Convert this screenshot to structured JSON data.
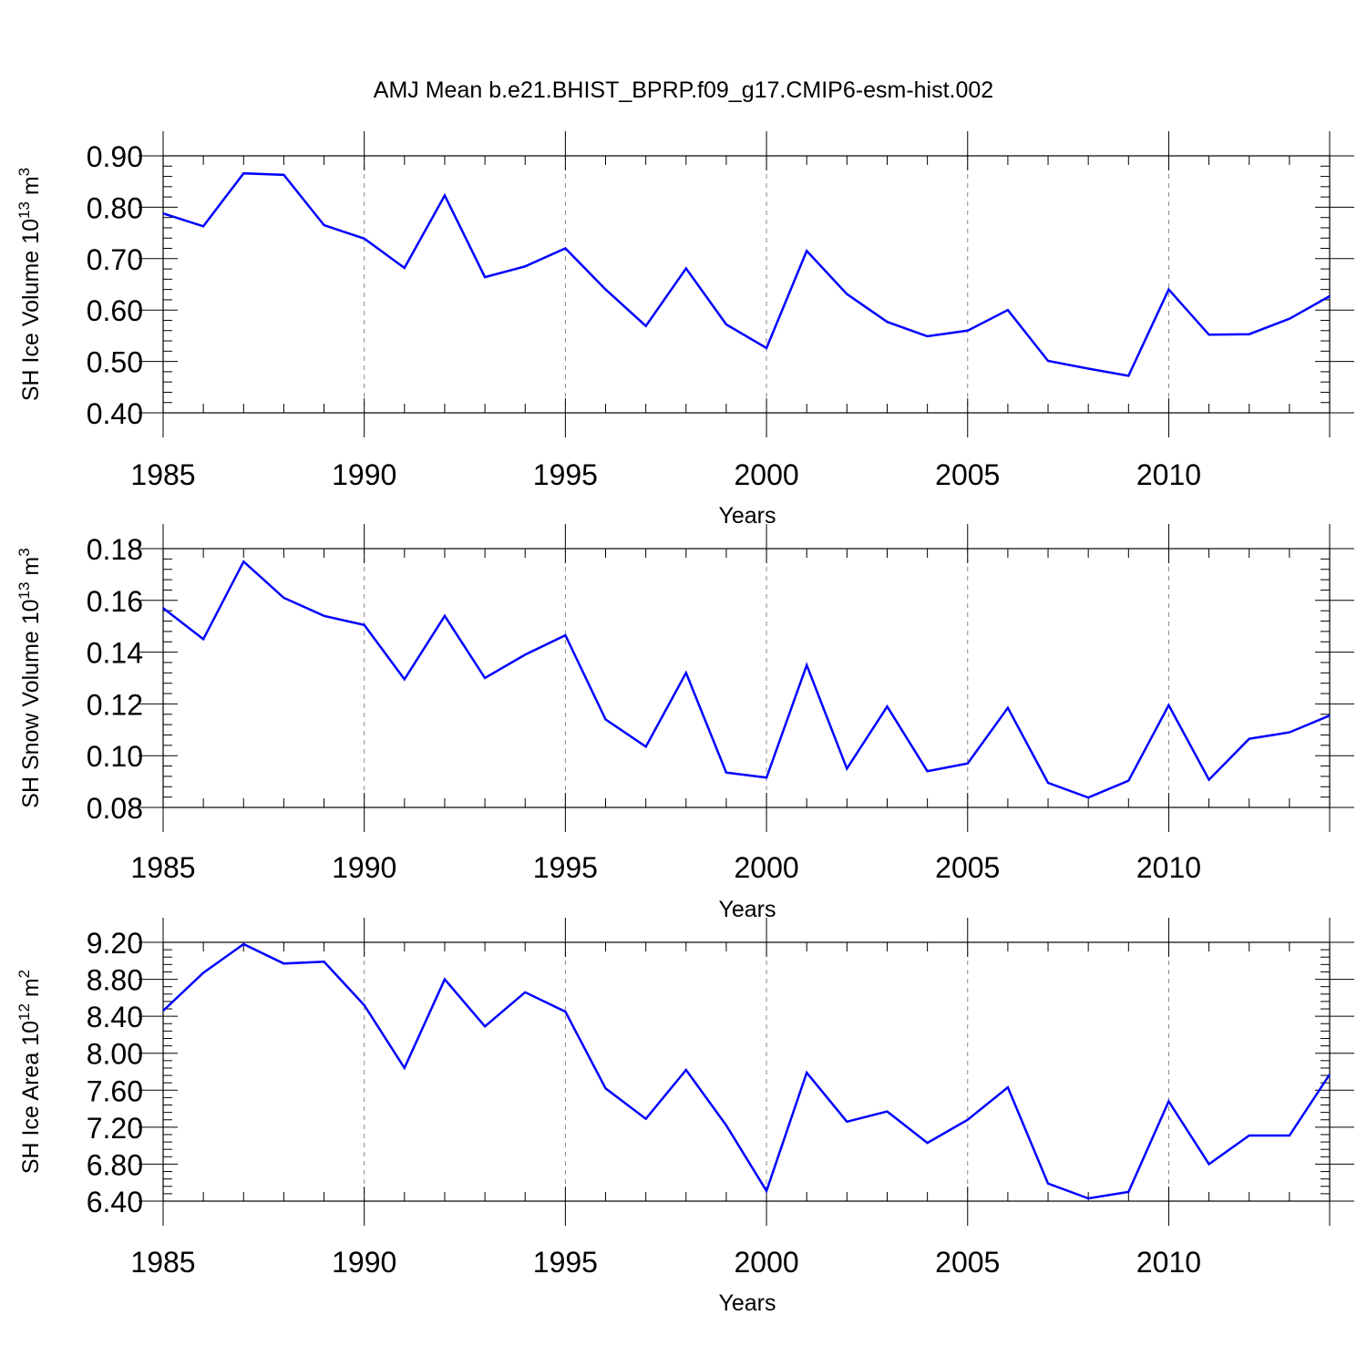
{
  "chart_title": "AMJ Mean b.e21.BHIST_BPRP.f09_g17.CMIP6-esm-hist.002",
  "chart_data": [
    {
      "type": "line",
      "title": "AMJ Mean b.e21.BHIST_BPRP.f09_g17.CMIP6-esm-hist.002",
      "xlabel": "Years",
      "ylabel": {
        "base": "SH Ice Volume 10",
        "exp": "13",
        "unit": " m",
        "unit_exp": "3"
      },
      "x": [
        1985,
        1986,
        1987,
        1988,
        1989,
        1990,
        1991,
        1992,
        1993,
        1994,
        1995,
        1996,
        1997,
        1998,
        1999,
        2000,
        2001,
        2002,
        2003,
        2004,
        2005,
        2006,
        2007,
        2008,
        2009,
        2010,
        2011,
        2012,
        2013,
        2014
      ],
      "series": [
        {
          "name": "SH Ice Volume",
          "color": "#0000ff",
          "values": [
            0.788,
            0.763,
            0.866,
            0.863,
            0.765,
            0.739,
            0.682,
            0.823,
            0.664,
            0.685,
            0.72,
            0.64,
            0.569,
            0.681,
            0.572,
            0.526,
            0.715,
            0.631,
            0.577,
            0.549,
            0.56,
            0.6,
            0.501,
            0.486,
            0.472,
            0.64,
            0.552,
            0.553,
            0.583,
            0.627
          ]
        }
      ],
      "xlim": [
        1985,
        2014
      ],
      "ylim": [
        0.4,
        0.9
      ],
      "xticks": [
        1985,
        1990,
        1995,
        2000,
        2005,
        2010
      ],
      "xtick_labels": [
        "1985",
        "1990",
        "1995",
        "2000",
        "2005",
        "2010"
      ],
      "yticks": [
        0.4,
        0.5,
        0.6,
        0.7,
        0.8,
        0.9
      ],
      "ytick_labels": [
        "0.40",
        "0.50",
        "0.60",
        "0.70",
        "0.80",
        "0.90"
      ],
      "grid": "vertical dashed at labeled years"
    },
    {
      "type": "line",
      "xlabel": "Years",
      "ylabel": {
        "base": "SH Snow Volume 10",
        "exp": "13",
        "unit": " m",
        "unit_exp": "3"
      },
      "x": [
        1985,
        1986,
        1987,
        1988,
        1989,
        1990,
        1991,
        1992,
        1993,
        1994,
        1995,
        1996,
        1997,
        1998,
        1999,
        2000,
        2001,
        2002,
        2003,
        2004,
        2005,
        2006,
        2007,
        2008,
        2009,
        2010,
        2011,
        2012,
        2013,
        2014
      ],
      "series": [
        {
          "name": "SH Snow Volume",
          "color": "#0000ff",
          "values": [
            0.157,
            0.145,
            0.175,
            0.161,
            0.154,
            0.1505,
            0.1295,
            0.154,
            0.13,
            0.139,
            0.1465,
            0.114,
            0.1035,
            0.132,
            0.0935,
            0.0915,
            0.135,
            0.095,
            0.119,
            0.094,
            0.097,
            0.1185,
            0.0895,
            0.0838,
            0.0903,
            0.1195,
            0.0907,
            0.1065,
            0.109,
            0.1155
          ]
        }
      ],
      "xlim": [
        1985,
        2014
      ],
      "ylim": [
        0.08,
        0.18
      ],
      "xticks": [
        1985,
        1990,
        1995,
        2000,
        2005,
        2010
      ],
      "xtick_labels": [
        "1985",
        "1990",
        "1995",
        "2000",
        "2005",
        "2010"
      ],
      "yticks": [
        0.08,
        0.1,
        0.12,
        0.14,
        0.16,
        0.18
      ],
      "ytick_labels": [
        "0.08",
        "0.10",
        "0.12",
        "0.14",
        "0.16",
        "0.18"
      ],
      "grid": "vertical dashed at labeled years"
    },
    {
      "type": "line",
      "xlabel": "Years",
      "ylabel": {
        "base": "SH Ice Area 10",
        "exp": "12",
        "unit": " m",
        "unit_exp": "2"
      },
      "x": [
        1985,
        1986,
        1987,
        1988,
        1989,
        1990,
        1991,
        1992,
        1993,
        1994,
        1995,
        1996,
        1997,
        1998,
        1999,
        2000,
        2001,
        2002,
        2003,
        2004,
        2005,
        2006,
        2007,
        2008,
        2009,
        2010,
        2011,
        2012,
        2013,
        2014
      ],
      "series": [
        {
          "name": "SH Ice Area",
          "color": "#0000ff",
          "values": [
            8.46,
            8.87,
            9.18,
            8.97,
            8.99,
            8.52,
            7.84,
            8.8,
            8.29,
            8.66,
            8.45,
            7.62,
            7.29,
            7.82,
            7.22,
            6.51,
            7.79,
            7.26,
            7.37,
            7.03,
            7.28,
            7.63,
            6.59,
            6.43,
            6.5,
            7.48,
            6.8,
            7.11,
            7.11,
            7.77
          ]
        }
      ],
      "xlim": [
        1985,
        2014
      ],
      "ylim": [
        6.4,
        9.2
      ],
      "xticks": [
        1985,
        1990,
        1995,
        2000,
        2005,
        2010
      ],
      "xtick_labels": [
        "1985",
        "1990",
        "1995",
        "2000",
        "2005",
        "2010"
      ],
      "yticks": [
        6.4,
        6.8,
        7.2,
        7.6,
        8.0,
        8.4,
        8.8,
        9.2
      ],
      "ytick_labels": [
        "6.40",
        "6.80",
        "7.20",
        "7.60",
        "8.00",
        "8.40",
        "8.80",
        "9.20"
      ],
      "grid": "vertical dashed at labeled years"
    }
  ]
}
